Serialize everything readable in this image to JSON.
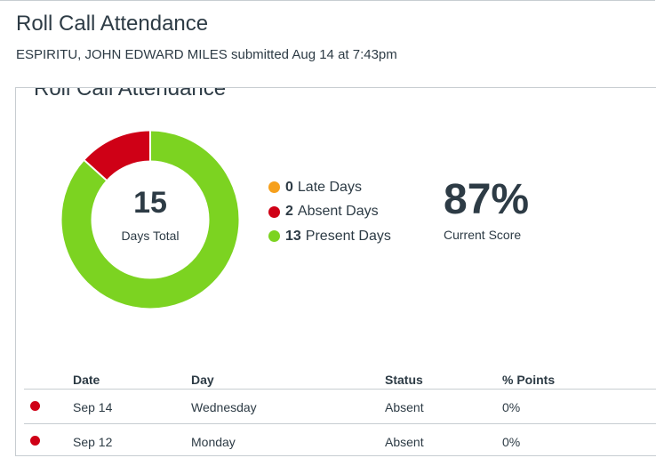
{
  "header": {
    "title": "Roll Call Attendance",
    "student_name": "ESPIRITU, JOHN EDWARD MILES",
    "submission_info": "submitted Aug 14 at 7:43pm"
  },
  "panel": {
    "title": "Roll Call Attendance",
    "donut": {
      "total": "15",
      "caption": "Days Total",
      "segments": [
        {
          "name": "late",
          "value": 0,
          "color": "#f6a01c"
        },
        {
          "name": "absent",
          "value": 2,
          "color": "#cf0016"
        },
        {
          "name": "present",
          "value": 13,
          "color": "#7cd321"
        }
      ]
    },
    "legend": [
      {
        "count": "0",
        "label": "Late Days",
        "color": "#f6a01c"
      },
      {
        "count": "2",
        "label": "Absent Days",
        "color": "#cf0016"
      },
      {
        "count": "13",
        "label": "Present Days",
        "color": "#7cd321"
      }
    ],
    "score": {
      "value": "87%",
      "label": "Current Score"
    }
  },
  "table": {
    "headers": {
      "date": "Date",
      "day": "Day",
      "status": "Status",
      "points": "% Points"
    },
    "rows": [
      {
        "date": "Sep 14",
        "day": "Wednesday",
        "status": "Absent",
        "points": "0%",
        "status_color": "#cf0016"
      },
      {
        "date": "Sep 12",
        "day": "Monday",
        "status": "Absent",
        "points": "0%",
        "status_color": "#cf0016"
      }
    ]
  }
}
